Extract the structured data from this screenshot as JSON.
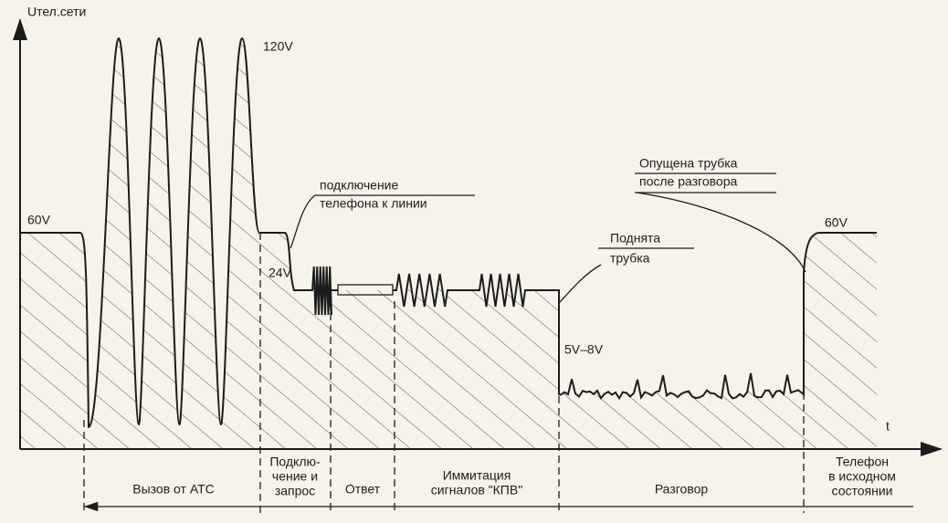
{
  "axes": {
    "y_label": "Uтел.сети",
    "x_label": "t"
  },
  "levels": {
    "call_peak": "120V",
    "idle_start": "60V",
    "connect": "24V",
    "talk": "5V–8V",
    "idle_end": "60V"
  },
  "annotations": {
    "connect": {
      "lines": [
        "подключение",
        "телефона к линии"
      ]
    },
    "hang_up": {
      "lines": [
        "Опущена трубка",
        "после разговора"
      ]
    },
    "pick_up": {
      "lines": [
        "Поднята",
        "трубка"
      ]
    }
  },
  "phases": [
    {
      "lines": [
        "Вызов от АТС"
      ]
    },
    {
      "lines": [
        "Подклю-",
        "чение и",
        "запрос"
      ]
    },
    {
      "lines": [
        "Ответ"
      ]
    },
    {
      "lines": [
        "Иммитация",
        "сигналов \"КПВ\""
      ]
    },
    {
      "lines": [
        "Разговор"
      ]
    },
    {
      "lines": [
        "Телефон",
        "в исходном",
        "состоянии"
      ]
    }
  ]
}
